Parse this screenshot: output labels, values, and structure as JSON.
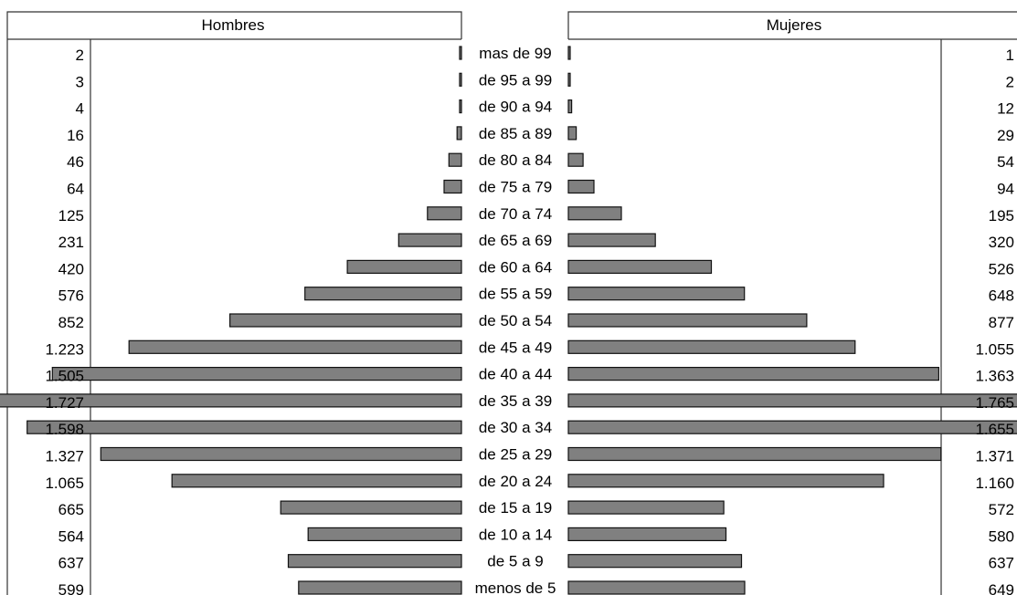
{
  "chart_data": {
    "type": "bar",
    "orientation": "horizontal-pyramid",
    "headers": {
      "left": "Hombres",
      "right": "Mujeres"
    },
    "categories": [
      "mas de 99",
      "de 95 a 99",
      "de 90 a 94",
      "de 85 a 89",
      "de 80 a 84",
      "de 75 a 79",
      "de 70 a 74",
      "de 65 a 69",
      "de 60 a 64",
      "de 55 a 59",
      "de 50 a 54",
      "de 45 a 49",
      "de 40 a 44",
      "de 35 a 39",
      "de 30 a 34",
      "de 25 a 29",
      "de 20 a 24",
      "de 15 a 19",
      "de 10 a 14",
      "de 5 a 9",
      "menos de 5"
    ],
    "series": [
      {
        "name": "Hombres",
        "values": [
          2,
          3,
          4,
          16,
          46,
          64,
          125,
          231,
          420,
          576,
          852,
          1223,
          1505,
          1727,
          1598,
          1327,
          1065,
          665,
          564,
          637,
          599
        ],
        "labels": [
          "2",
          "3",
          "4",
          "16",
          "46",
          "64",
          "125",
          "231",
          "420",
          "576",
          "852",
          "1.223",
          "1.505",
          "1.727",
          "1.598",
          "1.327",
          "1.065",
          "665",
          "564",
          "637",
          "599"
        ]
      },
      {
        "name": "Mujeres",
        "values": [
          1,
          2,
          12,
          29,
          54,
          94,
          195,
          320,
          526,
          648,
          877,
          1055,
          1363,
          1765,
          1655,
          1371,
          1160,
          572,
          580,
          637,
          649
        ],
        "labels": [
          "1",
          "2",
          "12",
          "29",
          "54",
          "94",
          "195",
          "320",
          "526",
          "648",
          "877",
          "1.055",
          "1.363",
          "1.765",
          "1.655",
          "1.371",
          "1.160",
          "572",
          "580",
          "637",
          "649"
        ]
      }
    ],
    "colors": {
      "bar": "#808080",
      "bar_edge": "#111111",
      "line": "#333333"
    }
  }
}
